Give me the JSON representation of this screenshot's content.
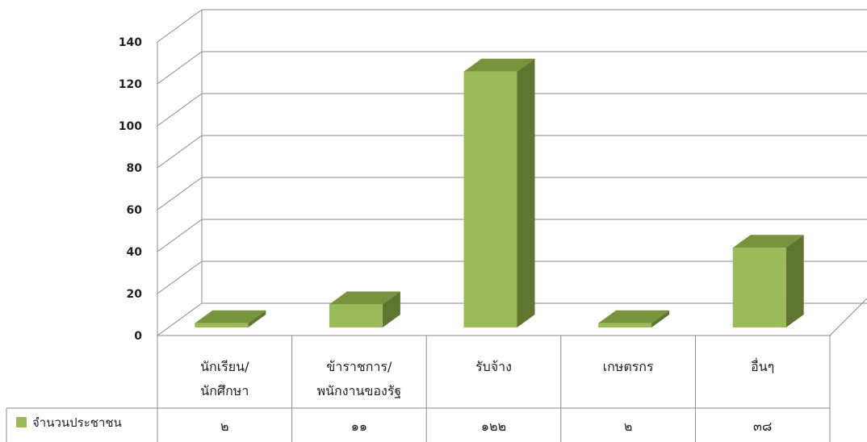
{
  "chart_data": {
    "type": "bar",
    "categories": [
      [
        "นักเรียน/",
        "นักศึกษา"
      ],
      [
        "ข้าราชการ/",
        "พนักงานของรัฐ"
      ],
      [
        "รับจ้าง"
      ],
      [
        "เกษตรกร"
      ],
      [
        "อื่นๆ"
      ]
    ],
    "series": [
      {
        "name": "จำนวนประชาชน",
        "values": [
          2,
          11,
          122,
          2,
          38
        ],
        "value_labels": [
          "๒",
          "๑๑",
          "๑๒๒",
          "๒",
          "๓๘"
        ],
        "color": "#9bbb59"
      }
    ],
    "ylim": [
      0,
      140
    ],
    "yticks": [
      0,
      20,
      40,
      60,
      80,
      100,
      120,
      140
    ],
    "grid": true,
    "legend": "data-table"
  }
}
